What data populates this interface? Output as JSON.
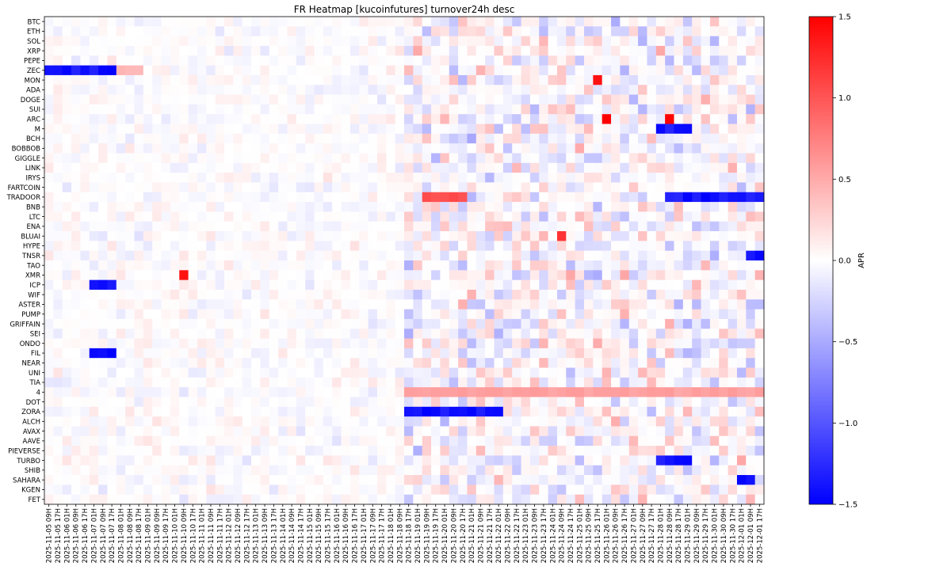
{
  "chart_data": {
    "type": "heatmap",
    "title": "FR Heatmap [kucoinfutures] turnover24h desc",
    "colorbar_label": "APR",
    "colormap": "bwr",
    "color_low": "#0000ff",
    "color_mid": "#ffffff",
    "color_high": "#ff0000",
    "vmin": -1.5,
    "vmax": 1.5,
    "colorbar_ticks": [
      1.5,
      1.0,
      0.5,
      0.0,
      -0.5,
      -1.0,
      -1.5
    ],
    "colorbar_tick_labels": [
      "1.5",
      "1.0",
      "0.5",
      "0.0",
      "−0.5",
      "−1.0",
      "−1.5"
    ],
    "rows": [
      "BTC",
      "ETH",
      "SOL",
      "XRP",
      "PEPE",
      "ZEC",
      "MON",
      "ADA",
      "DOGE",
      "SUI",
      "ARC",
      "M",
      "BCH",
      "BOBBOB",
      "GIGGLE",
      "LINK",
      "IRYS",
      "FARTCOIN",
      "TRADOOR",
      "BNB",
      "LTC",
      "ENA",
      "BLUAI",
      "HYPE",
      "TNSR",
      "TAO",
      "XMR",
      "ICP",
      "WIF",
      "ASTER",
      "PUMP",
      "GRIFFAIN",
      "SEI",
      "ONDO",
      "FIL",
      "NEAR",
      "UNI",
      "TIA",
      "4",
      "DOT",
      "ZORA",
      "ALCH",
      "AVAX",
      "AAVE",
      "PIEVERSE",
      "TURBO",
      "SHIB",
      "SAHARA",
      "KGEN",
      "FET"
    ],
    "columns": [
      "2025-11-05 09H",
      "2025-11-05 17H",
      "2025-11-06 01H",
      "2025-11-06 09H",
      "2025-11-06 17H",
      "2025-11-07 01H",
      "2025-11-07 09H",
      "2025-11-07 17H",
      "2025-11-08 01H",
      "2025-11-08 09H",
      "2025-11-08 17H",
      "2025-11-09 01H",
      "2025-11-09 09H",
      "2025-11-09 17H",
      "2025-11-10 01H",
      "2025-11-10 09H",
      "2025-11-10 17H",
      "2025-11-11 01H",
      "2025-11-11 09H",
      "2025-11-11 17H",
      "2025-11-12 01H",
      "2025-11-12 09H",
      "2025-11-12 17H",
      "2025-11-13 01H",
      "2025-11-13 09H",
      "2025-11-13 17H",
      "2025-11-14 01H",
      "2025-11-14 09H",
      "2025-11-14 17H",
      "2025-11-15 01H",
      "2025-11-15 09H",
      "2025-11-15 17H",
      "2025-11-16 01H",
      "2025-11-16 09H",
      "2025-11-16 17H",
      "2025-11-17 01H",
      "2025-11-17 09H",
      "2025-11-17 17H",
      "2025-11-18 01H",
      "2025-11-18 09H",
      "2025-11-18 17H",
      "2025-11-19 01H",
      "2025-11-19 09H",
      "2025-11-19 17H",
      "2025-11-20 01H",
      "2025-11-20 09H",
      "2025-11-20 17H",
      "2025-11-21 01H",
      "2025-11-21 09H",
      "2025-11-21 17H",
      "2025-11-22 01H",
      "2025-11-22 09H",
      "2025-11-22 17H",
      "2025-11-23 01H",
      "2025-11-23 09H",
      "2025-11-23 17H",
      "2025-11-24 01H",
      "2025-11-24 09H",
      "2025-11-24 17H",
      "2025-11-25 01H",
      "2025-11-25 09H",
      "2025-11-25 17H",
      "2025-11-26 01H",
      "2025-11-26 09H",
      "2025-11-26 17H",
      "2025-11-27 01H",
      "2025-11-27 09H",
      "2025-11-27 17H",
      "2025-11-28 01H",
      "2025-11-28 09H",
      "2025-11-28 17H",
      "2025-11-29 01H",
      "2025-11-29 09H",
      "2025-11-29 17H",
      "2025-11-30 01H",
      "2025-11-30 09H",
      "2025-11-30 17H",
      "2025-12-01 01H",
      "2025-12-01 09H",
      "2025-12-01 17H"
    ],
    "cells_per_column_label": 1,
    "listing_start_column": 40,
    "notable_values": [
      {
        "row": "ZEC",
        "from": "2025-11-05 09H",
        "to": "2025-11-07 17H",
        "value": -1.5
      },
      {
        "row": "ZEC",
        "from": "2025-11-08 01H",
        "to": "2025-11-08 17H",
        "value": 0.45
      },
      {
        "row": "MON",
        "at": "2025-11-25 17H",
        "value": 1.4
      },
      {
        "row": "ARC",
        "at": "2025-11-26 01H",
        "value": 1.5
      },
      {
        "row": "ARC",
        "at": "2025-11-28 09H",
        "value": 1.5
      },
      {
        "row": "M",
        "from": "2025-11-28 01H",
        "to": "2025-11-29 01H",
        "value": -1.5
      },
      {
        "row": "TRADOOR",
        "from": "2025-11-19 09H",
        "to": "2025-11-20 17H",
        "value": 1.1
      },
      {
        "row": "TRADOOR",
        "from": "2025-11-28 09H",
        "to": "2025-12-01 17H",
        "value": -1.5
      },
      {
        "row": "BLUAI",
        "at": "2025-11-24 09H",
        "value": 1.2
      },
      {
        "row": "TNSR",
        "from": "2025-12-01 09H",
        "to": "2025-12-01 17H",
        "value": -1.5
      },
      {
        "row": "XMR",
        "at": "2025-11-10 09H",
        "value": 1.4
      },
      {
        "row": "ICP",
        "from": "2025-11-07 01H",
        "to": "2025-11-07 17H",
        "value": -1.5
      },
      {
        "row": "FIL",
        "from": "2025-11-07 01H",
        "to": "2025-11-07 17H",
        "value": -1.5
      },
      {
        "row": "4",
        "from": "2025-11-18 17H",
        "to": "2025-12-01 17H",
        "value": 0.6
      },
      {
        "row": "ZORA",
        "from": "2025-11-18 17H",
        "to": "2025-11-22 01H",
        "value": -1.5
      },
      {
        "row": "TURBO",
        "from": "2025-11-28 01H",
        "to": "2025-11-29 01H",
        "value": -1.5
      },
      {
        "row": "SAHARA",
        "from": "2025-12-01 01H",
        "to": "2025-12-01 09H",
        "value": -1.5
      }
    ]
  }
}
